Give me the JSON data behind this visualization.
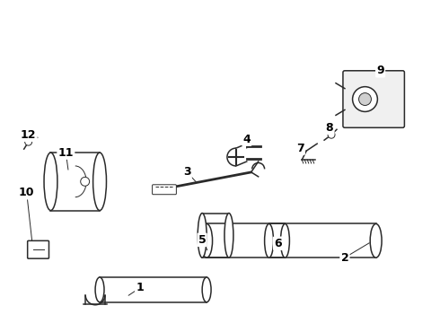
{
  "title": "",
  "background_color": "#ffffff",
  "line_color": "#2a2a2a",
  "label_color": "#000000",
  "figure_width": 4.9,
  "figure_height": 3.6,
  "dpi": 100,
  "label_fontsize": 9,
  "leaders": {
    "1": {
      "lpos": [
        1.55,
        0.38
      ],
      "ppos": [
        1.4,
        0.28
      ]
    },
    "2": {
      "lpos": [
        3.85,
        0.72
      ],
      "ppos": [
        4.15,
        0.9
      ]
    },
    "3": {
      "lpos": [
        2.08,
        1.68
      ],
      "ppos": [
        2.2,
        1.55
      ]
    },
    "4": {
      "lpos": [
        2.75,
        2.05
      ],
      "ppos": [
        2.75,
        1.92
      ]
    },
    "5": {
      "lpos": [
        2.25,
        0.92
      ],
      "ppos": [
        2.32,
        0.78
      ]
    },
    "6": {
      "lpos": [
        3.1,
        0.88
      ],
      "ppos": [
        3.05,
        0.82
      ]
    },
    "7": {
      "lpos": [
        3.35,
        1.95
      ],
      "ppos": [
        3.42,
        1.88
      ]
    },
    "8": {
      "lpos": [
        3.68,
        2.18
      ],
      "ppos": [
        3.72,
        2.1
      ]
    },
    "9": {
      "lpos": [
        4.25,
        2.82
      ],
      "ppos": [
        4.1,
        2.72
      ]
    },
    "10": {
      "lpos": [
        0.28,
        1.45
      ],
      "ppos": [
        0.35,
        0.82
      ]
    },
    "11": {
      "lpos": [
        0.72,
        1.9
      ],
      "ppos": [
        0.75,
        1.68
      ]
    },
    "12": {
      "lpos": [
        0.3,
        2.1
      ],
      "ppos": [
        0.33,
        2.04
      ]
    }
  }
}
